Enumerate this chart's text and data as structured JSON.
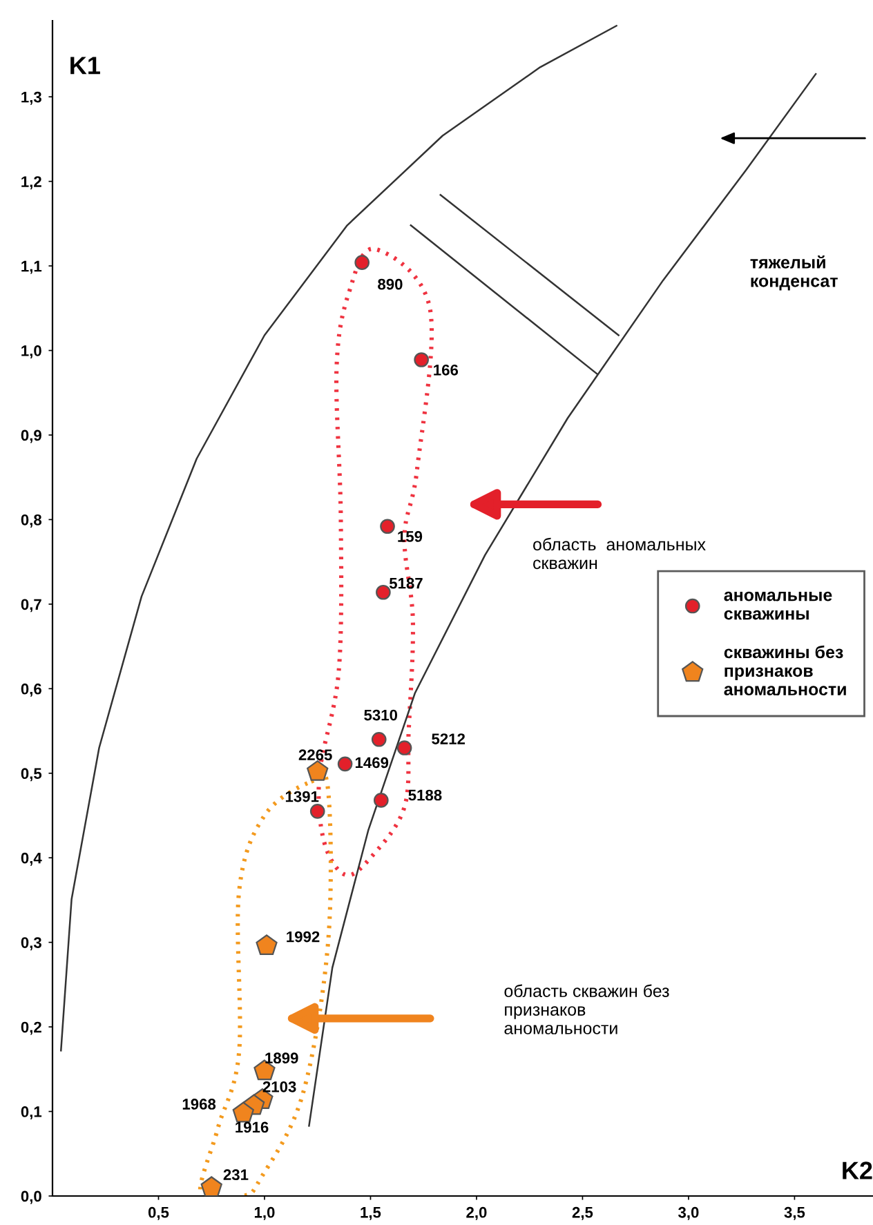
{
  "chart_data": {
    "type": "scatter",
    "xlabel": "K2",
    "ylabel": "K1",
    "xlim": [
      0,
      3.87
    ],
    "ylim": [
      0,
      1.39
    ],
    "xticks": [
      {
        "value": 0.5,
        "label": "0,5"
      },
      {
        "value": 1.0,
        "label": "1,0"
      },
      {
        "value": 1.5,
        "label": "1,5"
      },
      {
        "value": 2.0,
        "label": "2,0"
      },
      {
        "value": 2.5,
        "label": "2,5"
      },
      {
        "value": 3.0,
        "label": "3,0"
      },
      {
        "value": 3.5,
        "label": "3,5"
      }
    ],
    "yticks": [
      {
        "value": 0.0,
        "label": "0,0"
      },
      {
        "value": 0.1,
        "label": "0,1"
      },
      {
        "value": 0.2,
        "label": "0,2"
      },
      {
        "value": 0.3,
        "label": "0,3"
      },
      {
        "value": 0.4,
        "label": "0,4"
      },
      {
        "value": 0.5,
        "label": "0,5"
      },
      {
        "value": 0.6,
        "label": "0,6"
      },
      {
        "value": 0.7,
        "label": "0,7"
      },
      {
        "value": 0.8,
        "label": "0,8"
      },
      {
        "value": 0.9,
        "label": "0,9"
      },
      {
        "value": 1.0,
        "label": "1,0"
      },
      {
        "value": 1.1,
        "label": "1,1"
      },
      {
        "value": 1.2,
        "label": "1,2"
      },
      {
        "value": 1.3,
        "label": "1,3"
      }
    ],
    "grid": false,
    "legend": "right",
    "series": [
      {
        "name": "аномальные\nскважины",
        "color": "#e3202a",
        "x": [
          1.46,
          1.74,
          1.58,
          1.56,
          1.54,
          1.66,
          1.38,
          1.55,
          1.25
        ],
        "values": [
          1.104,
          0.989,
          0.792,
          0.714,
          0.54,
          0.53,
          0.511,
          0.468,
          0.455
        ]
      },
      {
        "name": "скважины без\nпризнаков\nаномальности",
        "color": "#f0841e",
        "x": [
          1.25,
          1.01,
          1.0,
          0.99,
          0.95,
          0.9,
          0.75
        ],
        "values": [
          0.502,
          0.296,
          0.148,
          0.114,
          0.107,
          0.098,
          0.01
        ]
      },
      {
        "type": "line",
        "color": "#333333",
        "marker": "none",
        "x": [
          0.04,
          0.09,
          0.22,
          0.42,
          0.68,
          1.0,
          1.39,
          1.84,
          2.3,
          2.66
        ],
        "values": [
          0.172,
          0.351,
          0.53,
          0.709,
          0.872,
          1.018,
          1.148,
          1.254,
          1.335,
          1.384
        ]
      },
      {
        "type": "line",
        "color": "#333333",
        "marker": "none",
        "x": [
          1.21,
          1.32,
          1.49,
          1.71,
          2.04,
          2.43,
          2.88,
          3.27,
          3.6
        ],
        "values": [
          0.083,
          0.27,
          0.433,
          0.595,
          0.758,
          0.92,
          1.083,
          1.213,
          1.327
        ]
      },
      {
        "type": "line",
        "color": "#333333",
        "marker": "none",
        "x": [
          1.83,
          2.67
        ],
        "values": [
          1.184,
          1.018
        ]
      },
      {
        "type": "line",
        "color": "#333333",
        "marker": "none",
        "x": [
          1.69,
          2.57
        ],
        "values": [
          1.148,
          0.972
        ]
      }
    ],
    "annotations": [
      "тяжелый\nконденсат",
      "область  аномальных\nскважин",
      "область скважин без\nпризнаков\nаномальности",
      {
        "text": "890",
        "x": 1.46,
        "y": 1.104
      },
      {
        "text": "166",
        "x": 1.74,
        "y": 0.989
      },
      {
        "text": "159",
        "x": 1.58,
        "y": 0.792
      },
      {
        "text": "5187",
        "x": 1.56,
        "y": 0.714
      },
      {
        "text": "5310",
        "x": 1.54,
        "y": 0.54
      },
      {
        "text": "5212",
        "x": 1.66,
        "y": 0.53
      },
      {
        "text": "1469",
        "x": 1.38,
        "y": 0.511
      },
      {
        "text": "5188",
        "x": 1.55,
        "y": 0.468
      },
      {
        "text": "1391",
        "x": 1.25,
        "y": 0.455
      },
      {
        "text": "2265",
        "x": 1.25,
        "y": 0.502
      },
      {
        "text": "1992",
        "x": 1.01,
        "y": 0.296
      },
      {
        "text": "1899",
        "x": 1.0,
        "y": 0.148
      },
      {
        "text": "2103",
        "x": 0.99,
        "y": 0.114
      },
      {
        "text": "1968",
        "x": 0.9,
        "y": 0.098
      },
      {
        "text": "1916",
        "x": 0.95,
        "y": 0.107
      },
      {
        "text": "231",
        "x": 0.75,
        "y": 0.01
      }
    ]
  }
}
